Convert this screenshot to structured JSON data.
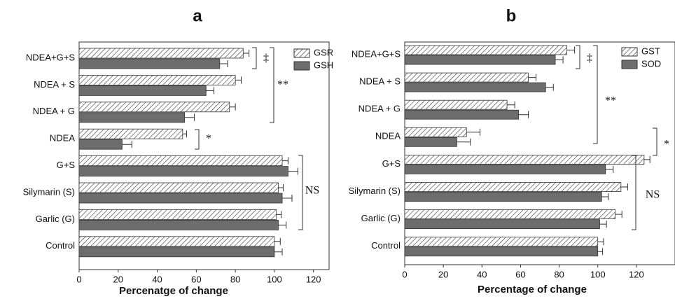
{
  "chart_data": [
    {
      "type": "bar",
      "title": "a",
      "xlabel": "Percenatge of change",
      "categories": [
        "NDEA+G+S",
        "NDEA + S",
        "NDEA + G",
        "NDEA",
        "G+S",
        "Silymarin (S)",
        "Garlic (G)",
        "Control"
      ],
      "series": [
        {
          "name": "GSR",
          "pattern": "hatch",
          "color": "#ffffff",
          "values": [
            84,
            80,
            77,
            53,
            104,
            102,
            101,
            100
          ],
          "errors": [
            3,
            3,
            3,
            2,
            3,
            2.5,
            2.5,
            3
          ]
        },
        {
          "name": "GSH",
          "color": "#6d6d6d",
          "values": [
            72,
            65,
            54,
            22,
            107,
            104,
            102,
            100
          ],
          "errors": [
            4,
            4,
            5,
            5,
            5,
            5,
            4,
            4
          ]
        }
      ],
      "xlim": [
        0,
        128
      ],
      "xticks": [
        0,
        20,
        40,
        60,
        80,
        100,
        120
      ],
      "annotations": [
        "‡",
        "**",
        "*",
        "NS"
      ]
    },
    {
      "type": "bar",
      "title": "b",
      "xlabel": "Percentage of change",
      "categories": [
        "NDEA+G+S",
        "NDEA + S",
        "NDEA + G",
        "NDEA",
        "G+S",
        "Silymarin (S)",
        "Garlic (G)",
        "Control"
      ],
      "series": [
        {
          "name": "GST",
          "pattern": "hatch",
          "color": "#ffffff",
          "values": [
            84,
            64,
            53,
            32,
            124,
            112,
            109,
            100
          ],
          "errors": [
            4,
            4,
            4,
            7,
            3,
            3.5,
            3.5,
            3
          ]
        },
        {
          "name": "SOD",
          "color": "#6d6d6d",
          "values": [
            78,
            73,
            59,
            27,
            104,
            102,
            101,
            100
          ],
          "errors": [
            4,
            4,
            5,
            7,
            4,
            3.5,
            3.5,
            2.5
          ]
        }
      ],
      "xlim": [
        0,
        140
      ],
      "xticks": [
        0,
        20,
        40,
        60,
        80,
        100,
        120
      ],
      "annotations": [
        "‡",
        "**",
        "*",
        "NS"
      ]
    }
  ]
}
